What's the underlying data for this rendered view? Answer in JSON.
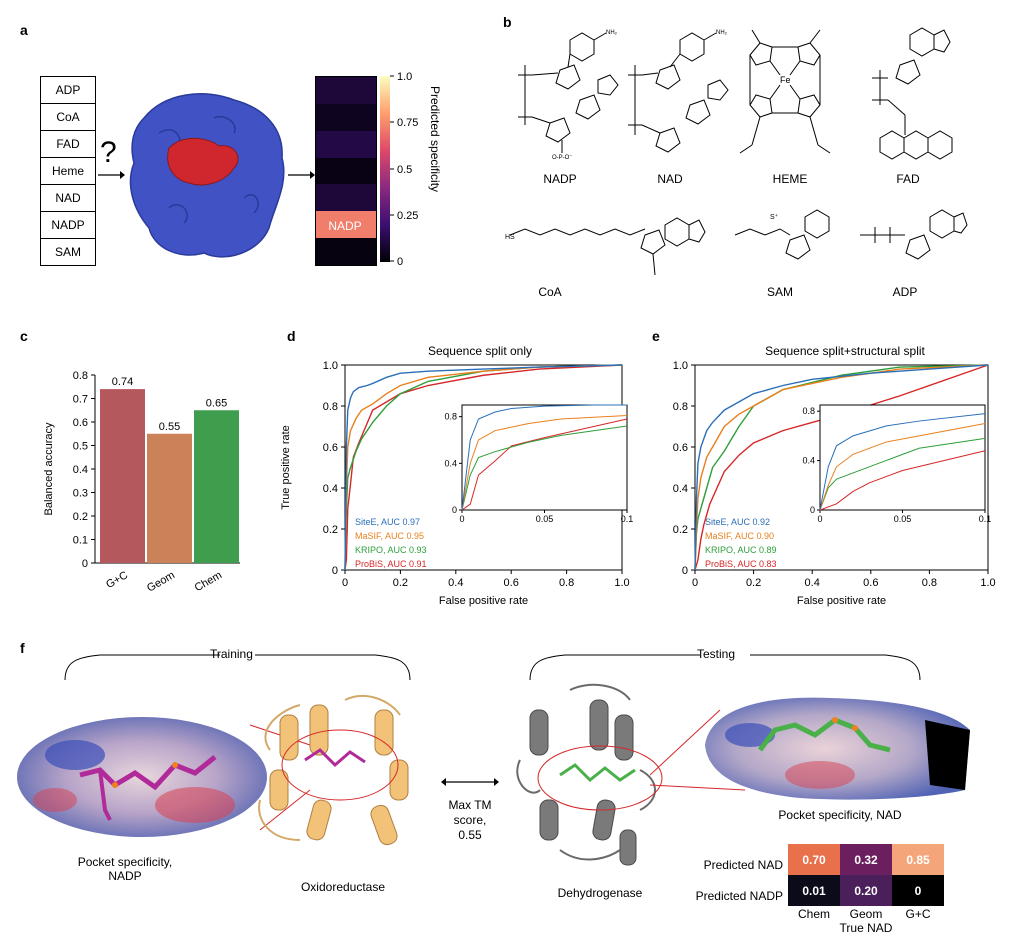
{
  "panel_labels": {
    "a": "a",
    "b": "b",
    "c": "c",
    "d": "d",
    "e": "e",
    "f": "f"
  },
  "panel_a": {
    "ligands": [
      "ADP",
      "CoA",
      "FAD",
      "Heme",
      "NAD",
      "NADP",
      "SAM"
    ],
    "question_mark": "?",
    "heatmap_highlight": "NADP",
    "colorbar_ticks": [
      "1.0",
      "0.75",
      "0.5",
      "0.25",
      "0"
    ],
    "colorbar_label": "Predicted specificity",
    "colorbar_colors": [
      "#000004",
      "#3b0f70",
      "#8c2981",
      "#de4968",
      "#fe9f6d",
      "#fcfdbf"
    ],
    "cells": [
      0.1,
      0.05,
      0.12,
      0.03,
      0.1,
      0.72,
      0.02
    ]
  },
  "panel_b": {
    "molecules": [
      {
        "name": "NADP"
      },
      {
        "name": "NAD"
      },
      {
        "name": "HEME"
      },
      {
        "name": "FAD"
      },
      {
        "name": "CoA"
      },
      {
        "name": "SAM"
      },
      {
        "name": "ADP"
      }
    ]
  },
  "panel_c": {
    "chart_data": {
      "type": "bar",
      "categories": [
        "G+C",
        "Geom",
        "Chem"
      ],
      "values": [
        0.74,
        0.55,
        0.65
      ],
      "value_labels": [
        "0.74",
        "0.55",
        "0.65"
      ],
      "colors": [
        "#b5585e",
        "#cc8258",
        "#3f9e4e"
      ],
      "ylabel": "Balanced accuracy",
      "ylim": [
        0,
        0.8
      ],
      "yticks": [
        "0",
        "0.1",
        "0.2",
        "0.3",
        "0.4",
        "0.5",
        "0.6",
        "0.7",
        "0.8"
      ]
    }
  },
  "panel_d": {
    "chart_data": {
      "type": "line",
      "title": "Sequence split only",
      "xlabel": "False positive rate",
      "ylabel": "True positive rate",
      "xlim": [
        0,
        1.0
      ],
      "ylim": [
        0,
        1.0
      ],
      "xticks": [
        "0",
        "0.2",
        "0.4",
        "0.6",
        "0.8",
        "1.0"
      ],
      "yticks": [
        "0",
        "0.2",
        "0.4",
        "0.6",
        "0.8",
        "1.0"
      ],
      "series": [
        {
          "name": "SiteE, AUC 0.97",
          "color": "#2a6fb8",
          "x": [
            0,
            0.005,
            0.01,
            0.02,
            0.03,
            0.05,
            0.08,
            0.1,
            0.15,
            0.2,
            0.3,
            0.5,
            0.7,
            1.0
          ],
          "y": [
            0,
            0.6,
            0.78,
            0.84,
            0.87,
            0.89,
            0.9,
            0.91,
            0.94,
            0.96,
            0.97,
            0.98,
            0.99,
            1.0
          ]
        },
        {
          "name": "MaSIF, AUC 0.95",
          "color": "#e8801e",
          "x": [
            0,
            0.005,
            0.01,
            0.02,
            0.04,
            0.06,
            0.1,
            0.15,
            0.2,
            0.3,
            0.5,
            0.7,
            1.0
          ],
          "y": [
            0,
            0.4,
            0.6,
            0.68,
            0.74,
            0.78,
            0.81,
            0.86,
            0.9,
            0.94,
            0.97,
            0.99,
            1.0
          ]
        },
        {
          "name": "KRIPO, AUC 0.93",
          "color": "#2f9e3a",
          "x": [
            0,
            0.005,
            0.01,
            0.02,
            0.04,
            0.06,
            0.1,
            0.15,
            0.2,
            0.3,
            0.5,
            0.7,
            1.0
          ],
          "y": [
            0,
            0.3,
            0.45,
            0.5,
            0.58,
            0.64,
            0.72,
            0.8,
            0.86,
            0.92,
            0.97,
            0.99,
            1.0
          ]
        },
        {
          "name": "ProBiS, AUC 0.91",
          "color": "#d62728",
          "x": [
            0,
            0.005,
            0.01,
            0.02,
            0.03,
            0.05,
            0.1,
            0.15,
            0.2,
            0.3,
            0.5,
            0.7,
            1.0
          ],
          "y": [
            0,
            0.05,
            0.3,
            0.42,
            0.55,
            0.62,
            0.78,
            0.82,
            0.86,
            0.9,
            0.95,
            0.98,
            1.0
          ]
        }
      ],
      "inset": {
        "xlim": [
          0,
          0.1
        ],
        "ylim": [
          0,
          0.9
        ],
        "xticks": [
          "0",
          "0.05",
          "0.1"
        ],
        "yticks": [
          "0",
          "0.4",
          "0.8"
        ]
      }
    }
  },
  "panel_e": {
    "chart_data": {
      "type": "line",
      "title": "Sequence split+structural split",
      "xlabel": "False positive rate",
      "ylabel": "",
      "xlim": [
        0,
        1.0
      ],
      "ylim": [
        0,
        1.0
      ],
      "xticks": [
        "0",
        "0.2",
        "0.4",
        "0.6",
        "0.8",
        "1.0"
      ],
      "yticks": [
        "0",
        "0.2",
        "0.4",
        "0.6",
        "0.8",
        "1.0"
      ],
      "series": [
        {
          "name": "SiteE, AUC 0.92",
          "color": "#2a6fb8",
          "x": [
            0,
            0.005,
            0.01,
            0.02,
            0.04,
            0.06,
            0.1,
            0.15,
            0.2,
            0.3,
            0.4,
            0.6,
            0.8,
            1.0
          ],
          "y": [
            0,
            0.35,
            0.52,
            0.6,
            0.68,
            0.72,
            0.78,
            0.82,
            0.86,
            0.9,
            0.93,
            0.96,
            0.98,
            1.0
          ]
        },
        {
          "name": "MaSIF, AUC 0.90",
          "color": "#e8801e",
          "x": [
            0,
            0.005,
            0.01,
            0.02,
            0.04,
            0.06,
            0.1,
            0.15,
            0.2,
            0.3,
            0.5,
            0.7,
            1.0
          ],
          "y": [
            0,
            0.2,
            0.35,
            0.45,
            0.55,
            0.6,
            0.7,
            0.76,
            0.8,
            0.88,
            0.94,
            0.98,
            1.0
          ]
        },
        {
          "name": "KRIPO, AUC 0.89",
          "color": "#2f9e3a",
          "x": [
            0,
            0.005,
            0.01,
            0.02,
            0.04,
            0.06,
            0.1,
            0.15,
            0.2,
            0.3,
            0.5,
            0.7,
            1.0
          ],
          "y": [
            0,
            0.18,
            0.25,
            0.3,
            0.4,
            0.5,
            0.58,
            0.7,
            0.8,
            0.88,
            0.95,
            0.99,
            1.0
          ]
        },
        {
          "name": "ProBiS, AUC 0.83",
          "color": "#d62728",
          "x": [
            0,
            0.01,
            0.02,
            0.03,
            0.05,
            0.1,
            0.15,
            0.2,
            0.3,
            0.4,
            0.5,
            0.7,
            0.9,
            1.0
          ],
          "y": [
            0,
            0.05,
            0.15,
            0.22,
            0.32,
            0.48,
            0.56,
            0.62,
            0.68,
            0.72,
            0.76,
            0.85,
            0.95,
            1.0
          ]
        }
      ],
      "inset": {
        "xlim": [
          0,
          0.1
        ],
        "ylim": [
          0,
          0.85
        ],
        "xticks": [
          "0",
          "0.05",
          "0.1"
        ],
        "yticks": [
          "0",
          "0.4",
          "0.8"
        ]
      }
    }
  },
  "panel_f": {
    "training_label": "Training",
    "testing_label": "Testing",
    "left_caption": "Pocket specificity,\nNADP",
    "left_protein": "Oxidoreductase",
    "middle_label": "Max TM\nscore,\n0.55",
    "right_protein": "Dehydrogenase",
    "right_caption": "Pocket specificity, NAD",
    "heatmap": {
      "row_labels": [
        "Predicted NAD",
        "Predicted NADP"
      ],
      "col_labels": [
        "Chem",
        "Geom",
        "G+C"
      ],
      "x_label": "True NAD",
      "values": [
        [
          "0.70",
          "0.32",
          "0.85"
        ],
        [
          "0.01",
          "0.20",
          "0"
        ]
      ],
      "colors": [
        [
          "#e8704a",
          "#6b1f5e",
          "#f4a67a"
        ],
        [
          "#0b0b1a",
          "#4a1f5a",
          "#000000"
        ]
      ]
    }
  }
}
